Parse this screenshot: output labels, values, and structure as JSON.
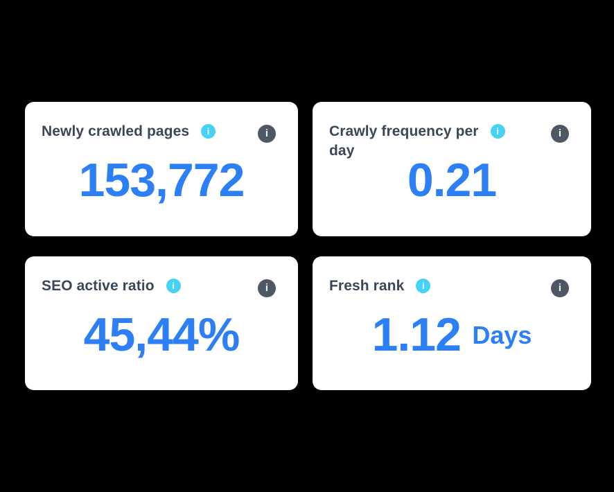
{
  "colors": {
    "background": "#000000",
    "card_background": "#ffffff",
    "title_text": "#3b4757",
    "value_text": "#2d7ff6",
    "info_badge_background": "#45d2f4",
    "help_badge_background": "#4e5764",
    "badge_glyph": "#ffffff"
  },
  "icons": {
    "info_glyph": "i",
    "help_glyph": "i"
  },
  "cards": [
    {
      "title": "Newly crawled pages",
      "title_line2": "",
      "value": "153,772",
      "unit": ""
    },
    {
      "title": "Crawly frequency per",
      "title_line2": "day",
      "value": "0.21",
      "unit": ""
    },
    {
      "title": "SEO active ratio",
      "title_line2": "",
      "value": "45,44%",
      "unit": ""
    },
    {
      "title": "Fresh rank",
      "title_line2": "",
      "value": "1.12",
      "unit": "Days"
    }
  ]
}
